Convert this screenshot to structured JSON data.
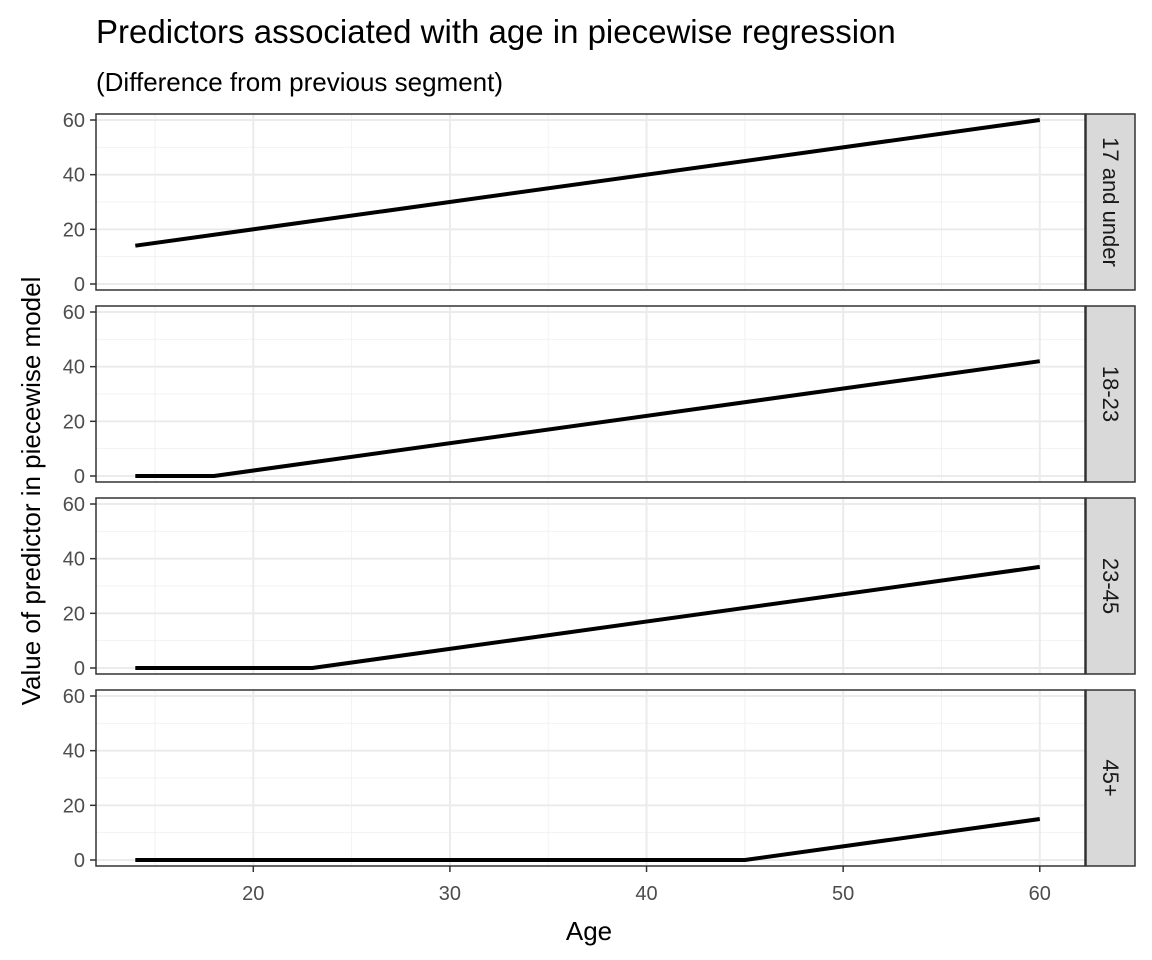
{
  "chart_data": {
    "type": "line",
    "title": "Predictors associated with age in piecewise regression",
    "subtitle": "(Difference from previous segment)",
    "xlabel": "Age",
    "ylabel": "Value of predictor in piecewise model",
    "xlim": [
      12,
      62.3
    ],
    "ylim": [
      -2.2,
      62.2
    ],
    "x_ticks": [
      20,
      30,
      40,
      50,
      60
    ],
    "y_ticks": [
      0,
      20,
      40,
      60
    ],
    "grid": true,
    "line_color": "#000000",
    "panels": [
      {
        "label": "17 and under",
        "points": [
          [
            14,
            14
          ],
          [
            60,
            60
          ]
        ]
      },
      {
        "label": "18-23",
        "points": [
          [
            14,
            0
          ],
          [
            18,
            0
          ],
          [
            60,
            42
          ]
        ]
      },
      {
        "label": "23-45",
        "points": [
          [
            14,
            0
          ],
          [
            23,
            0
          ],
          [
            60,
            37
          ]
        ]
      },
      {
        "label": "45+",
        "points": [
          [
            14,
            0
          ],
          [
            45,
            0
          ],
          [
            60,
            15
          ]
        ]
      }
    ]
  }
}
